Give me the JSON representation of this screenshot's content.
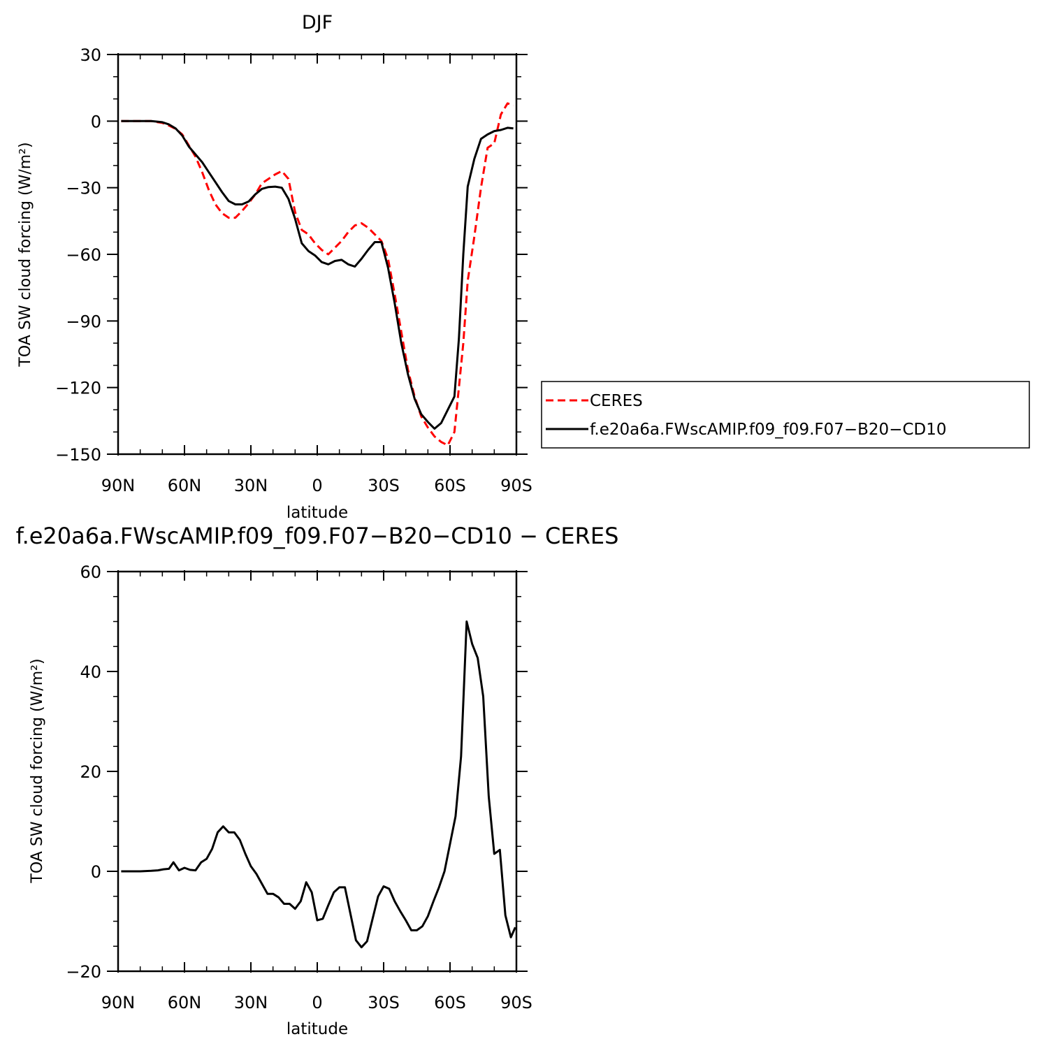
{
  "chart_data": [
    {
      "type": "line",
      "title": "DJF",
      "xlabel": "latitude",
      "ylabel": "TOA SW cloud forcing (W/m²)",
      "xlim": [
        90,
        -90
      ],
      "ylim": [
        -150,
        30
      ],
      "x_ticks": [
        90,
        60,
        30,
        0,
        -30,
        -60,
        -90
      ],
      "x_tick_labels": [
        "90N",
        "60N",
        "30N",
        "0",
        "30S",
        "60S",
        "90S"
      ],
      "y_ticks": [
        30,
        0,
        -30,
        -60,
        -90,
        -120,
        -150
      ],
      "y_tick_labels": [
        "30",
        "0",
        "−30",
        "−60",
        "−90",
        "−120",
        "−150"
      ],
      "grid": false,
      "legend": {
        "placement": "right",
        "entries": [
          "CERES",
          "f.e20a6a.FWscAMIP.f09_f09.F07−B20−CD10"
        ]
      },
      "series": [
        {
          "name": "CERES",
          "color": "#ff0000",
          "dash": "dashed",
          "x": [
            88.6,
            85,
            80,
            75,
            70,
            67,
            64,
            61,
            58,
            55,
            52,
            49,
            46,
            43,
            40,
            37,
            34,
            31,
            28,
            25,
            22,
            19,
            16,
            13,
            10,
            7,
            4,
            1,
            -2,
            -5,
            -8,
            -11,
            -14,
            -17,
            -20,
            -23,
            -26,
            -29,
            -32,
            -35,
            -38,
            -41,
            -44,
            -47,
            -50,
            -53,
            -56,
            -59,
            -62,
            -64,
            -66,
            -68,
            -71,
            -74,
            -77,
            -80,
            -83,
            -86,
            -88.6
          ],
          "y": [
            0,
            0,
            0,
            0,
            -0.8,
            -2,
            -3.5,
            -6,
            -11,
            -16,
            -23,
            -31,
            -37.5,
            -41.5,
            -43.5,
            -43.5,
            -40.5,
            -37,
            -33,
            -28,
            -26,
            -24,
            -22.5,
            -26,
            -41,
            -49,
            -51,
            -55,
            -58,
            -60,
            -57,
            -54,
            -50,
            -47,
            -46,
            -48,
            -51,
            -54,
            -62,
            -78,
            -95,
            -112,
            -124,
            -133,
            -138,
            -142,
            -144.5,
            -146,
            -140,
            -120,
            -100,
            -72,
            -52,
            -30,
            -12,
            -10,
            3,
            8,
            7
          ]
        },
        {
          "name": "f.e20a6a.FWscAMIP.f09_f09.F07−B20−CD10",
          "color": "#000000",
          "dash": "solid",
          "x": [
            88.6,
            85,
            80,
            75,
            70,
            67,
            64,
            61,
            58,
            55,
            52,
            49,
            46,
            43,
            40,
            37,
            34,
            31,
            28,
            25,
            22,
            19,
            16,
            13,
            10,
            7,
            4,
            1,
            -2,
            -5,
            -8,
            -11,
            -14,
            -17,
            -20,
            -23,
            -26,
            -29,
            -32,
            -35,
            -38,
            -41,
            -44,
            -47,
            -50,
            -53,
            -56,
            -59,
            -62,
            -64,
            -66,
            -68,
            -71,
            -74,
            -77,
            -80,
            -83,
            -86,
            -88.6
          ],
          "y": [
            0,
            0,
            0,
            0,
            -0.5,
            -1.5,
            -3.3,
            -6.5,
            -11.5,
            -15,
            -18.5,
            -23,
            -27.5,
            -32,
            -36,
            -37.5,
            -37.5,
            -36.2,
            -33,
            -30.5,
            -29.7,
            -29.5,
            -30,
            -35,
            -44,
            -55,
            -58.5,
            -60.5,
            -63.5,
            -64.5,
            -63,
            -62.5,
            -64.5,
            -65.5,
            -62,
            -58,
            -54.5,
            -54.5,
            -66,
            -82,
            -100,
            -114,
            -125,
            -132,
            -135.5,
            -138.5,
            -136,
            -130,
            -124,
            -98,
            -60,
            -29.5,
            -17,
            -8,
            -6,
            -4.5,
            -4,
            -3,
            -3.3
          ]
        }
      ]
    },
    {
      "type": "line",
      "title": "f.e20a6a.FWscAMIP.f09_f09.F07−B20−CD10 − CERES",
      "xlabel": "latitude",
      "ylabel": "TOA SW cloud forcing (W/m²)",
      "xlim": [
        90,
        -90
      ],
      "ylim": [
        -20,
        60
      ],
      "x_ticks": [
        90,
        60,
        30,
        0,
        -30,
        -60,
        -90
      ],
      "x_tick_labels": [
        "90N",
        "60N",
        "30N",
        "0",
        "30S",
        "60S",
        "90S"
      ],
      "y_ticks": [
        60,
        40,
        20,
        0,
        -20
      ],
      "y_tick_labels": [
        "60",
        "40",
        "20",
        "0",
        "−20"
      ],
      "grid": false,
      "series": [
        {
          "color": "#000000",
          "dash": "solid",
          "x": [
            88.6,
            85,
            80,
            75,
            72,
            69.5,
            67,
            65,
            62.5,
            60,
            57.5,
            55,
            52.5,
            50,
            47.5,
            45,
            42.5,
            40,
            37.5,
            35,
            32.5,
            30,
            27.5,
            25,
            22.5,
            20,
            17.5,
            15,
            12.5,
            10,
            7.5,
            5,
            2.5,
            0,
            -2.5,
            -5,
            -7.5,
            -10,
            -12.5,
            -15,
            -17.5,
            -20,
            -22.5,
            -25,
            -27.5,
            -30,
            -32.5,
            -35,
            -37.5,
            -40,
            -42.5,
            -45,
            -47.5,
            -50,
            -52.5,
            -55,
            -57.5,
            -60,
            -62.5,
            -65,
            -67.5,
            -70,
            -72.5,
            -75,
            -77.5,
            -80,
            -82.5,
            -85,
            -87.5,
            -89.5
          ],
          "y": [
            0,
            0,
            0,
            0.1,
            0.2,
            0.4,
            0.5,
            1.8,
            0.2,
            0.7,
            0.3,
            0.2,
            1.8,
            2.5,
            4.5,
            7.8,
            9.0,
            7.8,
            7.8,
            6.3,
            3.5,
            1.0,
            -0.5,
            -2.5,
            -4.5,
            -4.5,
            -5.2,
            -6.5,
            -6.5,
            -7.5,
            -6,
            -2.2,
            -4.2,
            -9.8,
            -9.5,
            -6.8,
            -4.2,
            -3.2,
            -3.2,
            -8.5,
            -13.8,
            -15.2,
            -14.0,
            -9.5,
            -5.0,
            -3.0,
            -3.5,
            -6.0,
            -8.0,
            -9.8,
            -11.8,
            -11.8,
            -11.0,
            -9.0,
            -6.0,
            -3.2,
            0,
            5.5,
            11,
            23,
            50,
            45.5,
            42.7,
            35,
            15,
            3.5,
            4.3,
            -8.8,
            -13.2,
            -11.2
          ]
        }
      ]
    }
  ]
}
